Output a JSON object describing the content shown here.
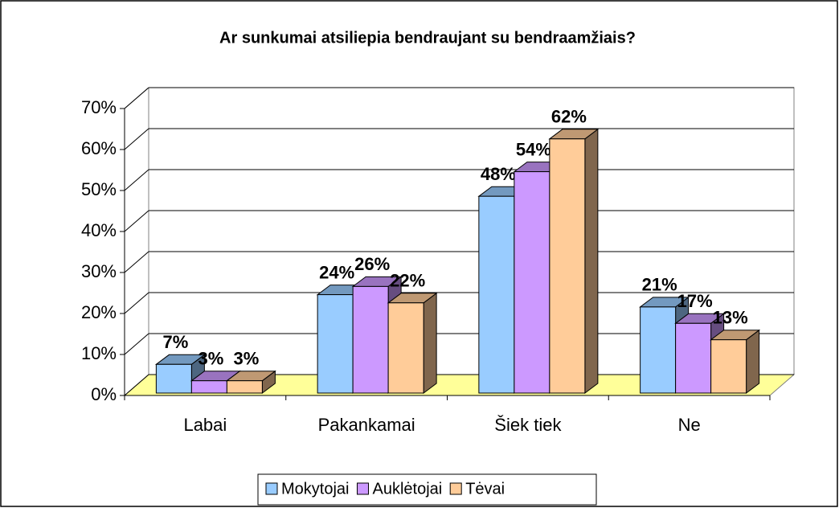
{
  "chart_data": {
    "type": "bar3d",
    "title": "Ar sunkumai atsiliepia bendraujant su bendraamžiais?",
    "categories": [
      "Labai",
      "Pakankamai",
      "Šiek tiek",
      "Ne"
    ],
    "series": [
      {
        "name": "Mokytojai",
        "color": "#99ccff",
        "values": [
          7,
          24,
          48,
          21
        ],
        "value_labels": [
          "7%",
          "24%",
          "48%",
          "21%"
        ]
      },
      {
        "name": "Auklėtojai",
        "color": "#cc99ff",
        "values": [
          3,
          26,
          54,
          17
        ],
        "value_labels": [
          "3%",
          "26%",
          "54%",
          "17%"
        ]
      },
      {
        "name": "Tėvai",
        "color": "#ffcc99",
        "values": [
          3,
          22,
          62,
          13
        ],
        "value_labels": [
          "3%",
          "22%",
          "62%",
          "13%"
        ]
      }
    ],
    "ylim": [
      0,
      70
    ],
    "yticks": [
      {
        "value": 0,
        "label": "0%"
      },
      {
        "value": 10,
        "label": "10%"
      },
      {
        "value": 20,
        "label": "20%"
      },
      {
        "value": 30,
        "label": "30%"
      },
      {
        "value": 40,
        "label": "40%"
      },
      {
        "value": 50,
        "label": "50%"
      },
      {
        "value": 60,
        "label": "60%"
      },
      {
        "value": 70,
        "label": "70%"
      }
    ],
    "grid": true,
    "legend": "bottom",
    "floor_color": "#ffff99"
  }
}
